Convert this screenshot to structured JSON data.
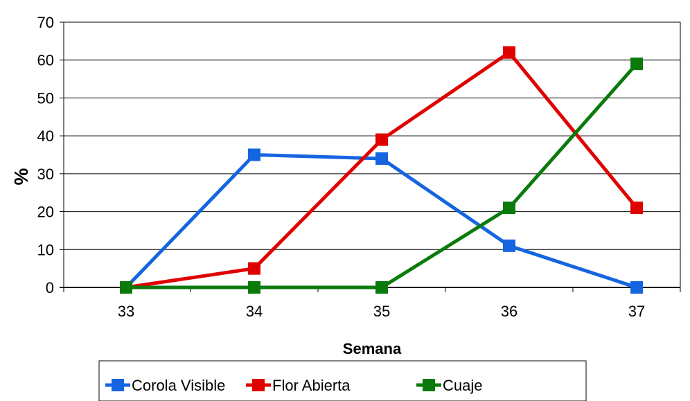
{
  "chart_data": {
    "type": "line",
    "x": [
      33,
      34,
      35,
      36,
      37
    ],
    "xlabel": "Semana",
    "ylabel": "%",
    "ylim": [
      0,
      70
    ],
    "yticks": [
      0,
      10,
      20,
      30,
      40,
      50,
      60,
      70
    ],
    "grid": "horizontal",
    "legend_position": "bottom",
    "series": [
      {
        "name": "Corola Visible",
        "color": "#1565e0",
        "values": [
          0,
          35,
          34,
          11,
          0
        ]
      },
      {
        "name": "Flor Abierta",
        "color": "#e00000",
        "values": [
          0,
          5,
          39,
          62,
          21
        ]
      },
      {
        "name": "Cuaje",
        "color": "#0a7a0a",
        "values": [
          0,
          0,
          0,
          21,
          59
        ]
      }
    ]
  }
}
